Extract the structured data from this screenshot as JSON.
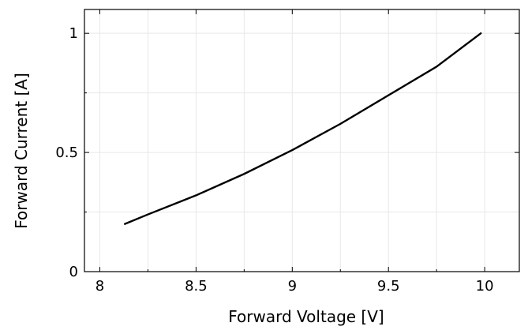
{
  "chart_data": {
    "type": "line",
    "title": "",
    "xlabel": "Forward Voltage [V]",
    "ylabel": "Forward Current [A]",
    "xlim": [
      7.92,
      10.18
    ],
    "ylim": [
      0,
      1.1
    ],
    "grid": true,
    "x_major_ticks": [
      {
        "value": 8,
        "label": "8"
      },
      {
        "value": 8.5,
        "label": "8.5"
      },
      {
        "value": 9,
        "label": "9"
      },
      {
        "value": 9.5,
        "label": "9.5"
      },
      {
        "value": 10,
        "label": "10"
      }
    ],
    "y_major_ticks": [
      {
        "value": 0,
        "label": "0"
      },
      {
        "value": 0.5,
        "label": "0.5"
      },
      {
        "value": 1,
        "label": "1"
      }
    ],
    "x_minor_ticks": [
      8.25,
      8.75,
      9.25,
      9.75
    ],
    "y_minor_ticks": [
      0.25,
      0.75
    ],
    "series": [
      {
        "color": "#000000",
        "x": [
          8.13,
          8.25,
          8.5,
          8.75,
          9.0,
          9.25,
          9.5,
          9.75,
          9.98
        ],
        "y": [
          0.2,
          0.24,
          0.32,
          0.41,
          0.51,
          0.62,
          0.74,
          0.86,
          1.0
        ]
      }
    ]
  }
}
